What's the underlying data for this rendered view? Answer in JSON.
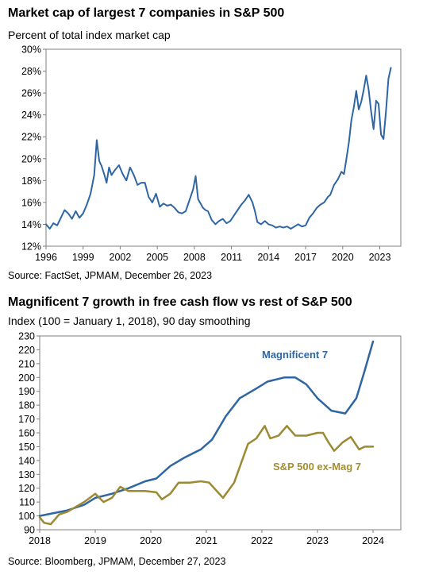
{
  "charts": [
    {
      "title": "Market cap of largest 7 companies in S&P 500",
      "subtitle": "Percent of total index market cap",
      "source": "Source: FactSet, JPMAM, December 26, 2023"
    },
    {
      "title": "Magnificent 7 growth in free cash flow vs rest of S&P 500",
      "subtitle": "Index (100 = January 1, 2018), 90 day smoothing",
      "source": "Source: Bloomberg, JPMAM, December 27, 2023"
    }
  ],
  "chart_data": [
    {
      "type": "line",
      "title": "Market cap of largest 7 companies in S&P 500",
      "subtitle": "Percent of total index market cap",
      "xlabel": "",
      "ylabel": "",
      "xlim": [
        1996,
        2024.7
      ],
      "ylim": [
        12,
        30
      ],
      "x_ticks": [
        1996,
        1999,
        2002,
        2005,
        2008,
        2011,
        2014,
        2017,
        2020,
        2023
      ],
      "x_tick_labels": [
        "1996",
        "1999",
        "2002",
        "2005",
        "2008",
        "2011",
        "2014",
        "2017",
        "2020",
        "2023"
      ],
      "y_ticks": [
        12,
        14,
        16,
        18,
        20,
        22,
        24,
        26,
        28,
        30
      ],
      "y_tick_labels": [
        "12%",
        "14%",
        "16%",
        "18%",
        "20%",
        "22%",
        "24%",
        "26%",
        "28%",
        "30%"
      ],
      "grid": false,
      "color": "#2e66a3",
      "series": [
        {
          "x": [
            1996,
            1996.3,
            1996.6,
            1996.9,
            1997.2,
            1997.5,
            1997.8,
            1998.1,
            1998.4,
            1998.7,
            1999,
            1999.3,
            1999.6,
            1999.9,
            2000.1,
            2000.3,
            2000.5,
            2000.7,
            2000.9,
            2001.1,
            2001.3,
            2001.6,
            2001.9,
            2002.2,
            2002.5,
            2002.8,
            2003.1,
            2003.4,
            2003.7,
            2004,
            2004.3,
            2004.6,
            2004.9,
            2005.2,
            2005.5,
            2005.8,
            2006.1,
            2006.4,
            2006.7,
            2007,
            2007.3,
            2007.6,
            2007.9,
            2008.1,
            2008.3,
            2008.5,
            2008.7,
            2008.9,
            2009.1,
            2009.4,
            2009.7,
            2010,
            2010.3,
            2010.6,
            2010.9,
            2011.2,
            2011.5,
            2011.8,
            2012.1,
            2012.4,
            2012.7,
            2012.9,
            2013.1,
            2013.4,
            2013.7,
            2014,
            2014.3,
            2014.6,
            2014.9,
            2015.2,
            2015.5,
            2015.8,
            2016.1,
            2016.4,
            2016.7,
            2017,
            2017.3,
            2017.6,
            2017.9,
            2018.2,
            2018.5,
            2018.8,
            2019,
            2019.3,
            2019.6,
            2019.9,
            2020.1,
            2020.3,
            2020.5,
            2020.7,
            2020.9,
            2021.1,
            2021.3,
            2021.5,
            2021.7,
            2021.9,
            2022.1,
            2022.3,
            2022.5,
            2022.7,
            2022.9,
            2023.1,
            2023.3,
            2023.5,
            2023.7,
            2023.9
          ],
          "values": [
            14.0,
            13.6,
            14.1,
            13.9,
            14.6,
            15.3,
            15.0,
            14.5,
            15.2,
            14.6,
            15.0,
            15.8,
            16.8,
            18.5,
            21.7,
            19.8,
            19.3,
            18.6,
            17.8,
            19.2,
            18.5,
            19.0,
            19.4,
            18.6,
            18.0,
            19.2,
            18.5,
            17.6,
            17.8,
            17.8,
            16.5,
            16.0,
            16.8,
            15.6,
            15.9,
            15.7,
            15.8,
            15.5,
            15.1,
            15.0,
            15.2,
            16.2,
            17.2,
            18.4,
            16.3,
            15.9,
            15.5,
            15.3,
            15.2,
            14.4,
            14.0,
            14.3,
            14.5,
            14.1,
            14.3,
            14.8,
            15.3,
            15.8,
            16.2,
            16.7,
            16.0,
            15.2,
            14.2,
            14.0,
            14.3,
            14.0,
            13.9,
            13.7,
            13.8,
            13.7,
            13.8,
            13.6,
            13.8,
            14.0,
            13.8,
            13.9,
            14.6,
            15.0,
            15.5,
            15.8,
            16.0,
            16.5,
            16.7,
            17.6,
            18.1,
            18.8,
            18.6,
            20.0,
            21.5,
            23.5,
            24.7,
            26.2,
            24.5,
            25.2,
            26.3,
            27.6,
            26.3,
            24.3,
            22.7,
            25.3,
            25.0,
            22.2,
            21.8,
            24.3,
            27.3,
            28.3
          ]
        }
      ]
    },
    {
      "type": "line",
      "title": "Magnificent 7 growth in free cash flow vs rest of S&P 500",
      "subtitle": "Index (100 = January 1, 2018), 90 day smoothing",
      "xlabel": "",
      "ylabel": "",
      "xlim": [
        2018,
        2024.5
      ],
      "ylim": [
        90,
        230
      ],
      "x_ticks": [
        2018,
        2019,
        2020,
        2021,
        2022,
        2023,
        2024
      ],
      "x_tick_labels": [
        "2018",
        "2019",
        "2020",
        "2021",
        "2022",
        "2023",
        "2024"
      ],
      "y_ticks": [
        90,
        100,
        110,
        120,
        130,
        140,
        150,
        160,
        170,
        180,
        190,
        200,
        210,
        220,
        230
      ],
      "y_tick_labels": [
        "90",
        "100",
        "110",
        "120",
        "130",
        "140",
        "150",
        "160",
        "170",
        "180",
        "190",
        "200",
        "210",
        "220",
        "230"
      ],
      "grid": false,
      "series": [
        {
          "name": "Magnificent 7",
          "color": "#2e66a3",
          "label_color": "#2e66a3",
          "x": [
            2018,
            2018.25,
            2018.5,
            2018.8,
            2019,
            2019.3,
            2019.6,
            2019.9,
            2020.1,
            2020.35,
            2020.6,
            2020.9,
            2021.1,
            2021.35,
            2021.6,
            2021.9,
            2022.1,
            2022.4,
            2022.6,
            2022.8,
            2023.0,
            2023.25,
            2023.5,
            2023.7,
            2023.85,
            2024.0
          ],
          "values": [
            100,
            102,
            104,
            108,
            113,
            116,
            120,
            125,
            127,
            136,
            142,
            148,
            155,
            172,
            185,
            192,
            197,
            200,
            200,
            195,
            185,
            176,
            174,
            185,
            205,
            226
          ]
        },
        {
          "name": "S&P 500 ex-Mag 7",
          "color": "#9c8a33",
          "label_color": "#a38f2e",
          "x": [
            2018,
            2018.08,
            2018.2,
            2018.35,
            2018.5,
            2018.8,
            2019,
            2019.15,
            2019.3,
            2019.45,
            2019.6,
            2019.9,
            2020.1,
            2020.2,
            2020.35,
            2020.5,
            2020.7,
            2020.9,
            2021.05,
            2021.3,
            2021.5,
            2021.75,
            2021.9,
            2022.05,
            2022.15,
            2022.3,
            2022.45,
            2022.6,
            2022.8,
            2023.0,
            2023.1,
            2023.2,
            2023.3,
            2023.45,
            2023.6,
            2023.75,
            2023.85,
            2024.0
          ],
          "values": [
            99,
            95,
            94,
            101,
            103,
            110,
            116,
            110,
            113,
            121,
            118,
            118,
            117,
            112,
            116,
            124,
            124,
            125,
            124,
            113,
            124,
            152,
            156,
            165,
            156,
            158,
            165,
            158,
            158,
            160,
            160,
            153,
            147,
            153,
            157,
            148,
            150,
            150
          ]
        }
      ]
    }
  ]
}
